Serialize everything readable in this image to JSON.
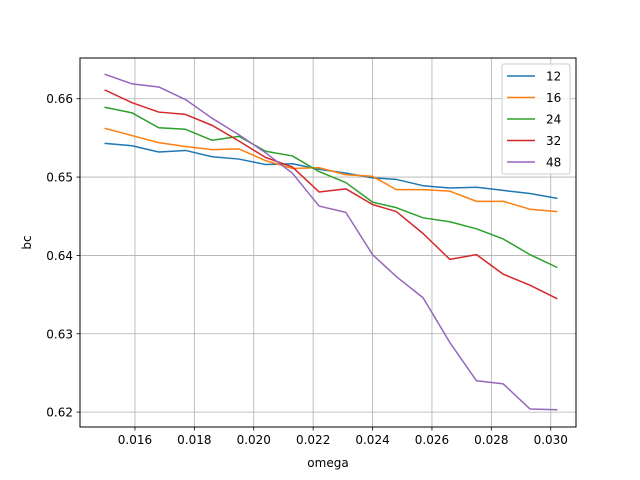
{
  "chart_data": {
    "type": "line",
    "title": "",
    "xlabel": "omega",
    "ylabel": "bc",
    "xlim": [
      0.01415,
      0.03085
    ],
    "ylim": [
      0.6181,
      0.6652
    ],
    "grid": true,
    "legend_position": "top-right",
    "x": [
      0.015,
      0.0159,
      0.0168,
      0.0177,
      0.0186,
      0.0195,
      0.0204,
      0.0213,
      0.0222,
      0.0231,
      0.024,
      0.0248,
      0.0257,
      0.0266,
      0.0275,
      0.0284,
      0.0293,
      0.0302
    ],
    "xticks": [
      {
        "value": 0.016,
        "label": "0.016"
      },
      {
        "value": 0.018,
        "label": "0.018"
      },
      {
        "value": 0.02,
        "label": "0.020"
      },
      {
        "value": 0.022,
        "label": "0.022"
      },
      {
        "value": 0.024,
        "label": "0.024"
      },
      {
        "value": 0.026,
        "label": "0.026"
      },
      {
        "value": 0.028,
        "label": "0.028"
      },
      {
        "value": 0.03,
        "label": "0.030"
      }
    ],
    "yticks": [
      {
        "value": 0.62,
        "label": "0.62"
      },
      {
        "value": 0.63,
        "label": "0.63"
      },
      {
        "value": 0.64,
        "label": "0.64"
      },
      {
        "value": 0.65,
        "label": "0.65"
      },
      {
        "value": 0.66,
        "label": "0.66"
      }
    ],
    "series": [
      {
        "name": "12",
        "color": "#1f77b4",
        "values": [
          0.6543,
          0.654,
          0.6532,
          0.6534,
          0.6526,
          0.6523,
          0.6516,
          0.6517,
          0.651,
          0.6505,
          0.6499,
          0.6497,
          0.6489,
          0.6486,
          0.6487,
          0.6483,
          0.6479,
          0.6473
        ]
      },
      {
        "name": "16",
        "color": "#ff7f0e",
        "values": [
          0.6562,
          0.6553,
          0.6544,
          0.6539,
          0.6535,
          0.6536,
          0.6521,
          0.6511,
          0.6512,
          0.6503,
          0.6501,
          0.6484,
          0.6484,
          0.6482,
          0.6469,
          0.6469,
          0.6459,
          0.6456
        ]
      },
      {
        "name": "24",
        "color": "#2ca02c",
        "values": [
          0.6589,
          0.6582,
          0.6563,
          0.6561,
          0.6547,
          0.6552,
          0.6533,
          0.6527,
          0.6507,
          0.6493,
          0.6468,
          0.6461,
          0.6448,
          0.6443,
          0.6434,
          0.6421,
          0.6401,
          0.6385
        ]
      },
      {
        "name": "32",
        "color": "#d62728",
        "values": [
          0.6611,
          0.6595,
          0.6583,
          0.658,
          0.6566,
          0.6546,
          0.6525,
          0.6513,
          0.6481,
          0.6485,
          0.6465,
          0.6456,
          0.6428,
          0.6395,
          0.6401,
          0.6376,
          0.6362,
          0.6345
        ]
      },
      {
        "name": "48",
        "color": "#9467bd",
        "values": [
          0.6631,
          0.6619,
          0.6615,
          0.6599,
          0.6575,
          0.6554,
          0.6531,
          0.6505,
          0.6463,
          0.6455,
          0.6401,
          0.6373,
          0.6346,
          0.6289,
          0.624,
          0.6236,
          0.6204,
          0.6203
        ]
      }
    ]
  }
}
